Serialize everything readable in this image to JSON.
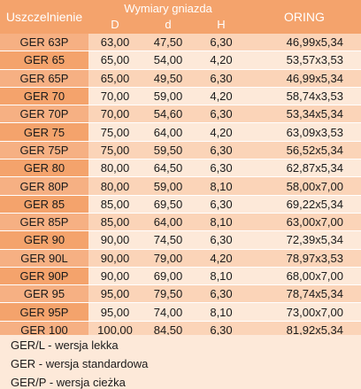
{
  "header": {
    "seal_label": "Uszczelnienie",
    "dims_group": "Wymiary gniazda",
    "dim_D": "D",
    "dim_d": "d",
    "dim_H": "H",
    "oring_label": "ORING"
  },
  "rows": [
    {
      "name": "GER 63P",
      "D": "63,00",
      "d": "47,50",
      "H": "6,30",
      "oring": "46,99x5,34"
    },
    {
      "name": "GER 65",
      "D": "65,00",
      "d": "54,00",
      "H": "4,20",
      "oring": "53,57x3,53"
    },
    {
      "name": "GER 65P",
      "D": "65,00",
      "d": "49,50",
      "H": "6,30",
      "oring": "46,99x5,34"
    },
    {
      "name": "GER 70",
      "D": "70,00",
      "d": "59,00",
      "H": "4,20",
      "oring": "58,74x3,53"
    },
    {
      "name": "GER 70P",
      "D": "70,00",
      "d": "54,60",
      "H": "6,30",
      "oring": "53,34x5,34"
    },
    {
      "name": "GER 75",
      "D": "75,00",
      "d": "64,00",
      "H": "4,20",
      "oring": "63,09x3,53"
    },
    {
      "name": "GER 75P",
      "D": "75,00",
      "d": "59,50",
      "H": "6,30",
      "oring": "56,52x5,34"
    },
    {
      "name": "GER 80",
      "D": "80,00",
      "d": "64,50",
      "H": "6,30",
      "oring": "62,87x5,34"
    },
    {
      "name": "GER 80P",
      "D": "80,00",
      "d": "59,00",
      "H": "8,10",
      "oring": "58,00x7,00"
    },
    {
      "name": "GER 85",
      "D": "85,00",
      "d": "69,50",
      "H": "6,30",
      "oring": "69,22x5,34"
    },
    {
      "name": "GER 85P",
      "D": "85,00",
      "d": "64,00",
      "H": "8,10",
      "oring": "63,00x7,00"
    },
    {
      "name": "GER 90",
      "D": "90,00",
      "d": "74,50",
      "H": "6,30",
      "oring": "72,39x5,34"
    },
    {
      "name": "GER 90L",
      "D": "90,00",
      "d": "79,00",
      "H": "4,20",
      "oring": "78,97x3,53"
    },
    {
      "name": "GER 90P",
      "D": "90,00",
      "d": "69,00",
      "H": "8,10",
      "oring": "68,00x7,00"
    },
    {
      "name": "GER 95",
      "D": "95,00",
      "d": "79,50",
      "H": "6,30",
      "oring": "78,74x5,34"
    },
    {
      "name": "GER 95P",
      "D": "95,00",
      "d": "74,00",
      "H": "8,10",
      "oring": "73,00x7,00"
    },
    {
      "name": "GER 100",
      "D": "100,00",
      "d": "84,50",
      "H": "6,30",
      "oring": "81,92x5,34"
    }
  ],
  "legend": [
    "GER/L - wersja lekka",
    "GER - wersja standardowa",
    "GER/P - wersja cieżka"
  ]
}
